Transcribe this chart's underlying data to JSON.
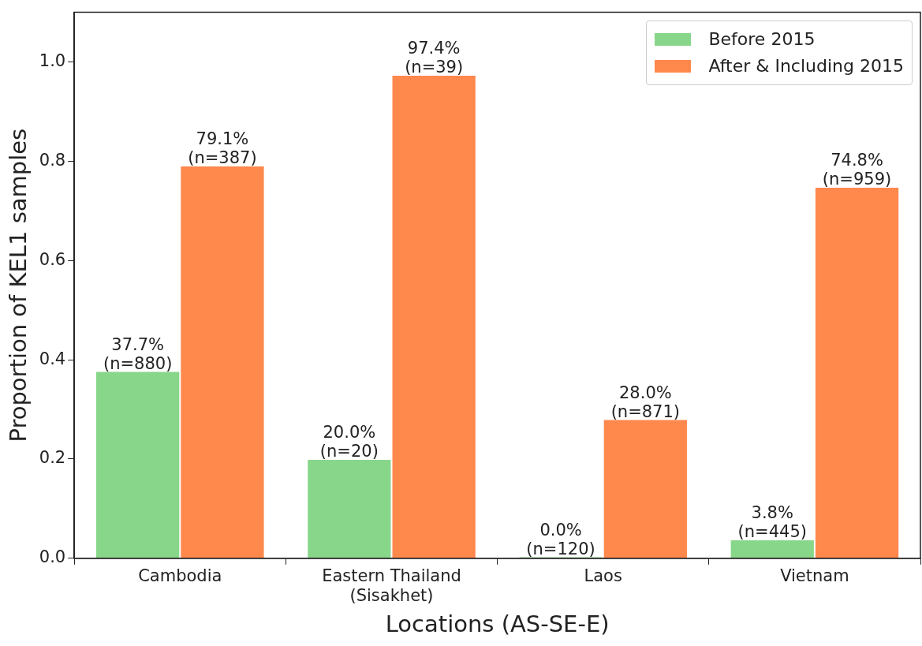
{
  "chart_data": {
    "type": "bar",
    "xlabel": "Locations (AS-SE-E)",
    "ylabel": "Proportion of KEL1 samples",
    "categories": [
      "Cambodia",
      "Eastern Thailand\n(Sisakhet)",
      "Laos",
      "Vietnam"
    ],
    "series": [
      {
        "name": "Before 2015",
        "color": "#88d68a",
        "values": [
          0.377,
          0.2,
          0.0,
          0.038
        ],
        "value_labels": [
          "37.7%\n(n=880)",
          "20.0%\n(n=20)",
          "0.0%\n(n=120)",
          "3.8%\n(n=445)"
        ]
      },
      {
        "name": "After & Including 2015",
        "color": "#ff884d",
        "values": [
          0.791,
          0.974,
          0.28,
          0.748
        ],
        "value_labels": [
          "79.1%\n(n=387)",
          "97.4%\n(n=39)",
          "28.0%\n(n=871)",
          "74.8%\n(n=959)"
        ]
      }
    ],
    "ylim": [
      0,
      1.1
    ],
    "yticks": [
      {
        "value": 0,
        "label": "0.0"
      },
      {
        "value": 0.2,
        "label": "0.2"
      },
      {
        "value": 0.4,
        "label": "0.4"
      },
      {
        "value": 0.6,
        "label": "0.6"
      },
      {
        "value": 0.8,
        "label": "0.8"
      },
      {
        "value": 1.0,
        "label": "1.0"
      }
    ],
    "legend": "top right"
  }
}
